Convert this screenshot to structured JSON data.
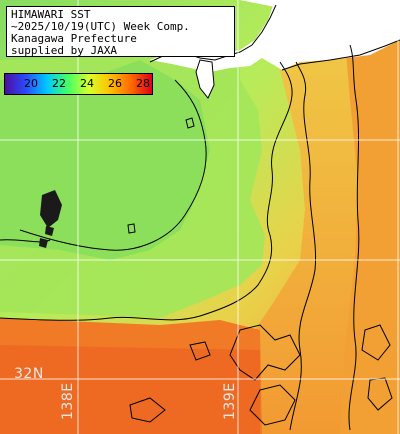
{
  "title": {
    "line1": "HIMAWARI SST",
    "line2": "~2025/10/19(UTC) Week Comp.",
    "line3": "Kanagawa Prefecture",
    "line4": "supplied by JAXA"
  },
  "colorbar": {
    "ticks": [
      "20",
      "22",
      "24",
      "26",
      "28"
    ],
    "colors": [
      "#4b0fa0",
      "#2a4bff",
      "#00c8ff",
      "#44ff66",
      "#d8ff2a",
      "#ffc000",
      "#ff6a00",
      "#e0001a"
    ]
  },
  "grid_labels": {
    "lat": "32N",
    "lon1": "138E",
    "lon2": "139E"
  },
  "colors": {
    "land": "#ffffff",
    "coast": "#000000",
    "warm": "#f08a2c",
    "mid": "#f0c840",
    "cool": "#a8e860",
    "green": "#7ed85a",
    "grid": "#ffffff"
  }
}
